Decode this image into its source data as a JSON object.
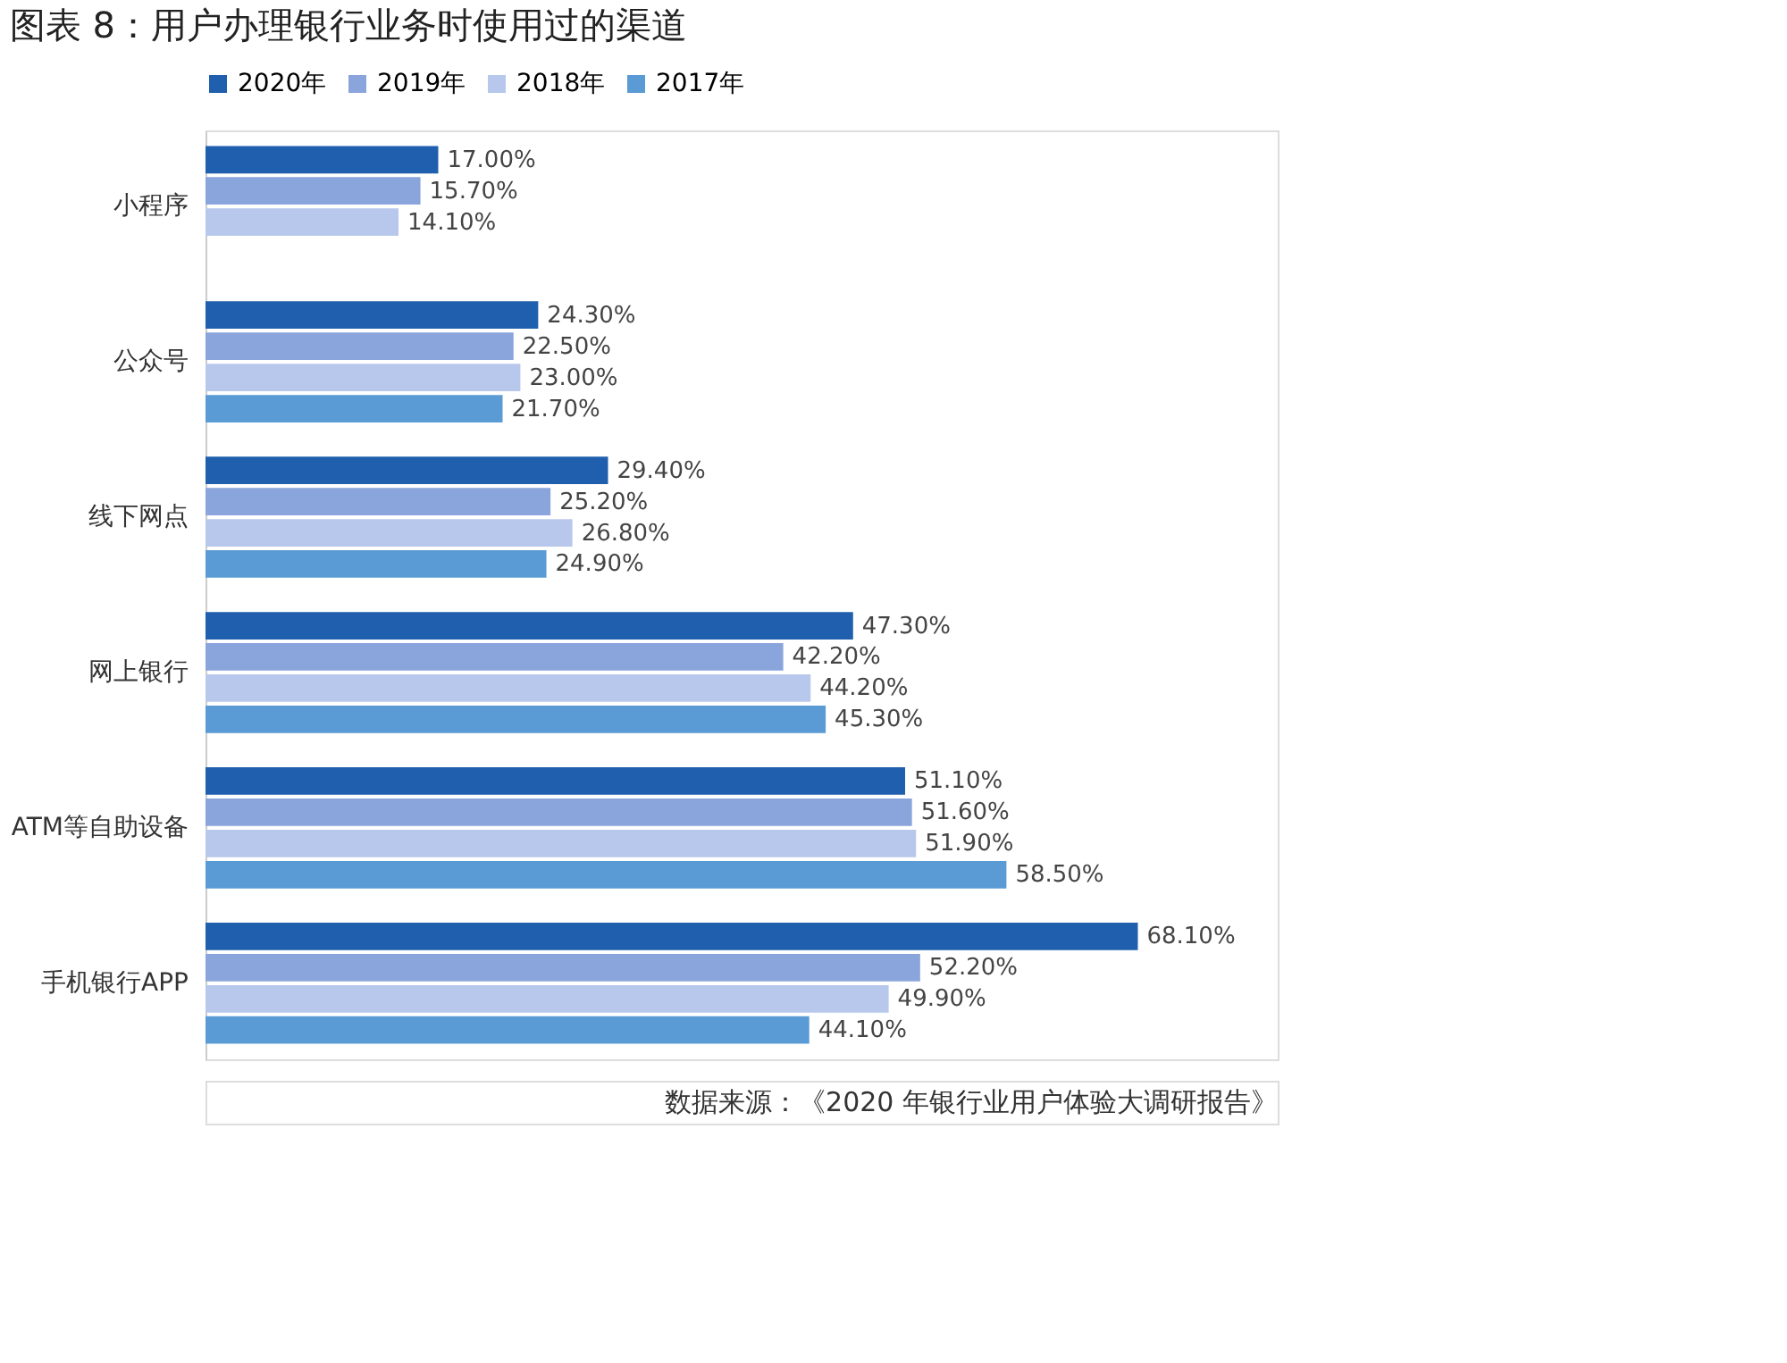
{
  "chart_data": {
    "type": "bar",
    "orientation": "horizontal",
    "title": "图表 8：用户办理银行业务时使用过的渠道",
    "categories": [
      "小程序",
      "公众号",
      "线下网点",
      "网上银行",
      "ATM等自助设备",
      "手机银行APP"
    ],
    "series": [
      {
        "name": "2020年",
        "color": "#1f5fad",
        "values": [
          17.0,
          24.3,
          29.4,
          47.3,
          51.1,
          68.1
        ],
        "value_labels": [
          "17.00%",
          "24.30%",
          "29.40%",
          "47.30%",
          "51.10%",
          "68.10%"
        ]
      },
      {
        "name": "2019年",
        "color": "#8aa5dc",
        "values": [
          15.7,
          22.5,
          25.2,
          42.2,
          51.6,
          52.2
        ],
        "value_labels": [
          "15.70%",
          "22.50%",
          "25.20%",
          "42.20%",
          "51.60%",
          "52.20%"
        ]
      },
      {
        "name": "2018年",
        "color": "#b8c8ec",
        "values": [
          14.1,
          23.0,
          26.8,
          44.2,
          51.9,
          49.9
        ],
        "value_labels": [
          "14.10%",
          "23.00%",
          "26.80%",
          "44.20%",
          "51.90%",
          "49.90%"
        ]
      },
      {
        "name": "2017年",
        "color": "#5b9bd5",
        "values": [
          null,
          21.7,
          24.9,
          45.3,
          58.5,
          44.1
        ],
        "value_labels": [
          null,
          "21.70%",
          "24.90%",
          "45.30%",
          "58.50%",
          "44.10%"
        ]
      }
    ],
    "legend": "top",
    "grid": false,
    "annotations": [
      "数据来源：《2020 年银行业用户体验大调研报告》"
    ]
  }
}
